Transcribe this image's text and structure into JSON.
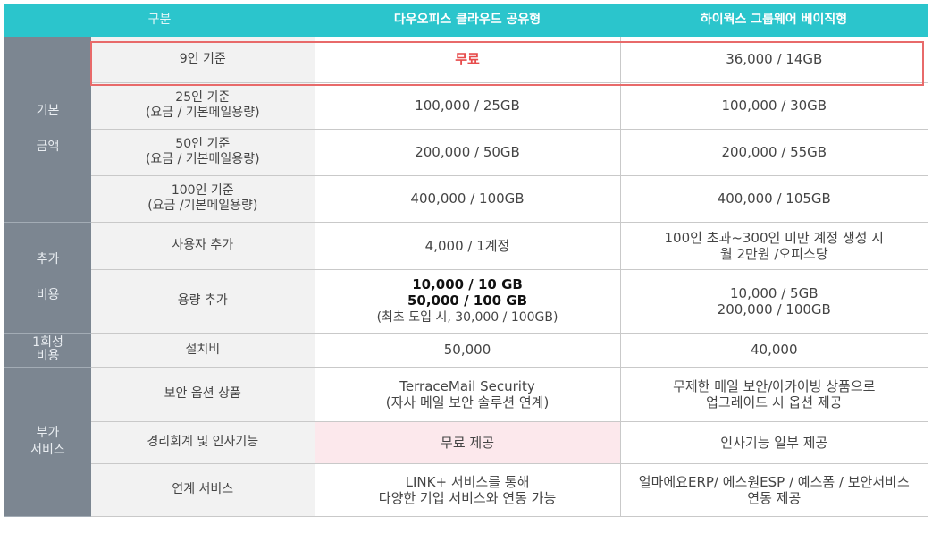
{
  "header": {
    "col1": "구분",
    "col2": "다우오피스 클라우드 공유형",
    "col3": "하이웍스 그룹웨어 베이직형"
  },
  "categories": {
    "basic": [
      "기본",
      "금액"
    ],
    "extra": [
      "추가",
      "비용"
    ],
    "onetime": [
      "1회성",
      "비용"
    ],
    "addon": [
      "부가",
      "서비스"
    ]
  },
  "rows": {
    "r9": {
      "label": "9인 기준",
      "daou": "무료",
      "hiworks": "36,000 / 14GB"
    },
    "r25": {
      "label1": "25인 기준",
      "label2": "(요금 / 기본메일용량)",
      "daou": "100,000 / 25GB",
      "hiworks": "100,000 / 30GB"
    },
    "r50": {
      "label1": "50인 기준",
      "label2": "(요금 / 기본메일용량)",
      "daou": "200,000 / 50GB",
      "hiworks": "200,000 / 55GB"
    },
    "r100": {
      "label1": "100인 기준",
      "label2": "(요금 /기본메일용량)",
      "daou": "400,000 / 100GB",
      "hiworks": "400,000 / 105GB"
    },
    "user_add": {
      "label": "사용자 추가",
      "daou": "4,000 / 1계정",
      "hiworks1": "100인 초과~300인 미만 계정 생성 시",
      "hiworks2": "월 2만원 /오피스당"
    },
    "storage_add": {
      "label": "용량 추가",
      "daou1": "10,000 / 10 GB",
      "daou2": "50,000 / 100 GB",
      "daou3": "(최초 도입 시, 30,000 / 100GB)",
      "hiworks1": "10,000 / 5GB",
      "hiworks2": "200,000 / 100GB"
    },
    "install": {
      "label": "설치비",
      "daou": "50,000",
      "hiworks": "40,000"
    },
    "security": {
      "label": "보안 옵션 상품",
      "daou1": "TerraceMail Security",
      "daou2": "(자사 메일 보안 솔루션 연계)",
      "hiworks1": "무제한 메일 보안/아카이빙 상품으로",
      "hiworks2": "업그레이드 시 옵션 제공"
    },
    "hr": {
      "label": "경리회계 및 인사기능",
      "daou": "무료 제공",
      "hiworks": "인사기능 일부 제공"
    },
    "link": {
      "label": "연계 서비스",
      "daou1": "LINK+ 서비스를 통해",
      "daou2": "다양한 기업 서비스와 연동 가능",
      "hiworks1": "얼마에요ERP/ 에스원ESP / 예스폼 / 보안서비스",
      "hiworks2": "연동 제공"
    }
  },
  "colors": {
    "header": "#2bc5cc",
    "category": "#7c8691",
    "highlight": "#e86a6a",
    "free": "#e74c4c",
    "pink": "#fce8ec"
  }
}
